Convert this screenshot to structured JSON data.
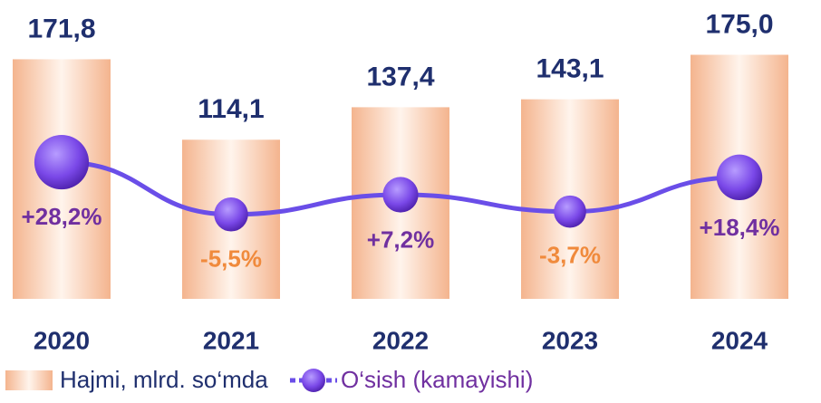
{
  "chart_data": {
    "type": "bar-line",
    "categories": [
      "2020",
      "2021",
      "2022",
      "2023",
      "2024"
    ],
    "ylim": [
      0,
      200
    ],
    "y2lim": [
      -60,
      120
    ],
    "series": [
      {
        "name": "Hajmi, mlrd. so‘mda",
        "type": "bar",
        "color": "#f7c3a3",
        "values": [
          171.8,
          114.1,
          137.4,
          143.1,
          175.0
        ],
        "value_labels": [
          "171,8",
          "114,1",
          "137,4",
          "143,1",
          "175,0"
        ]
      },
      {
        "name": "O‘sish (kamayishi)",
        "type": "line",
        "axis": "y2",
        "color": "#6a4ee8",
        "values": [
          28.2,
          -5.5,
          7.2,
          -3.7,
          18.4
        ],
        "value_labels": [
          "+28,2%",
          "-5,5%",
          "+7,2%",
          "-3,7%",
          "+18,4%"
        ],
        "positive_color": "#7030a0",
        "negative_color": "#f08a3c"
      }
    ]
  }
}
